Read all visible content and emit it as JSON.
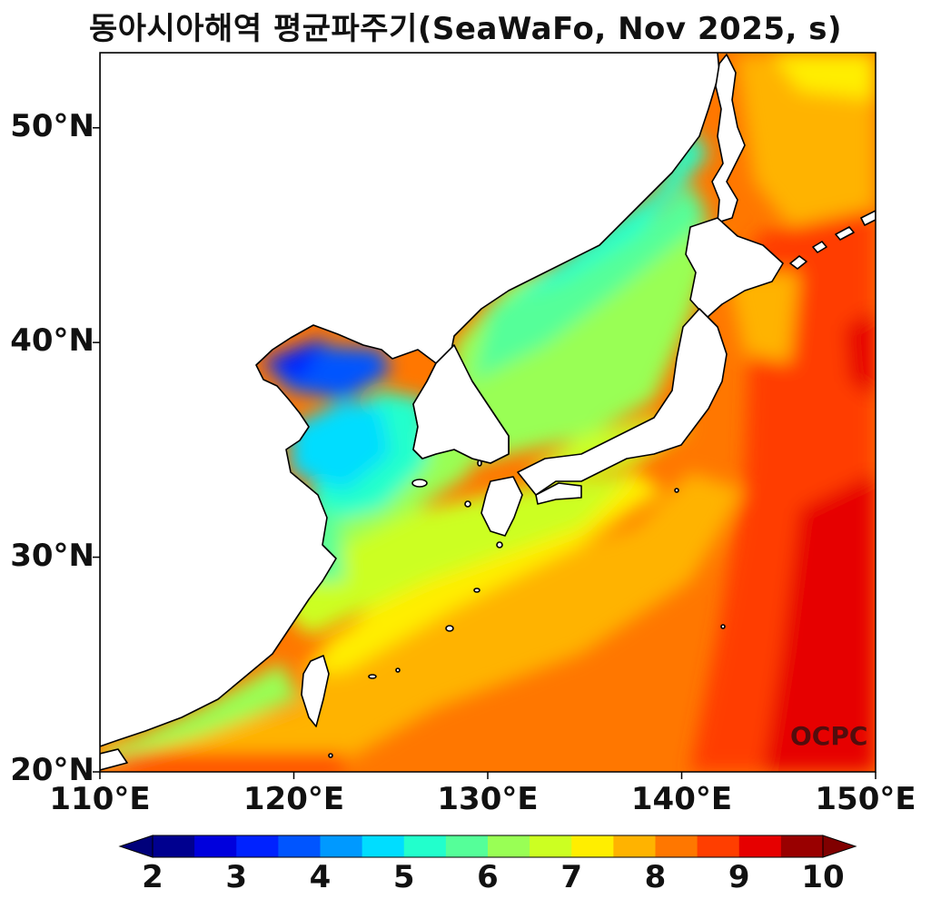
{
  "title": "동아시아해역 평균파주기(SeaWaFo, Nov 2025, s)",
  "watermark": "OCPC",
  "axes": {
    "lat_ticks": [
      {
        "value": 20,
        "label": "20°N"
      },
      {
        "value": 30,
        "label": "30°N"
      },
      {
        "value": 40,
        "label": "40°N"
      },
      {
        "value": 50,
        "label": "50°N"
      }
    ],
    "lon_ticks": [
      {
        "value": 110,
        "label": "110°E"
      },
      {
        "value": 120,
        "label": "120°E"
      },
      {
        "value": 130,
        "label": "130°E"
      },
      {
        "value": 140,
        "label": "140°E"
      },
      {
        "value": 150,
        "label": "150°E"
      }
    ],
    "lon_range": [
      110,
      150
    ],
    "lat_range": [
      20,
      53.5
    ]
  },
  "colorbar": {
    "min": 2,
    "max": 10,
    "step": 0.5,
    "extend": "both",
    "labels": [
      "2",
      "3",
      "4",
      "5",
      "6",
      "7",
      "8",
      "9",
      "10"
    ],
    "colors": [
      "#00008f",
      "#0000dd",
      "#0022ff",
      "#0055ff",
      "#0099ff",
      "#00ddff",
      "#22ffcc",
      "#55ff99",
      "#99ff55",
      "#ccff22",
      "#ffee00",
      "#ffb300",
      "#ff7700",
      "#ff3e00",
      "#e60000",
      "#990000"
    ],
    "under_color": "#00007a",
    "over_color": "#800000"
  }
}
